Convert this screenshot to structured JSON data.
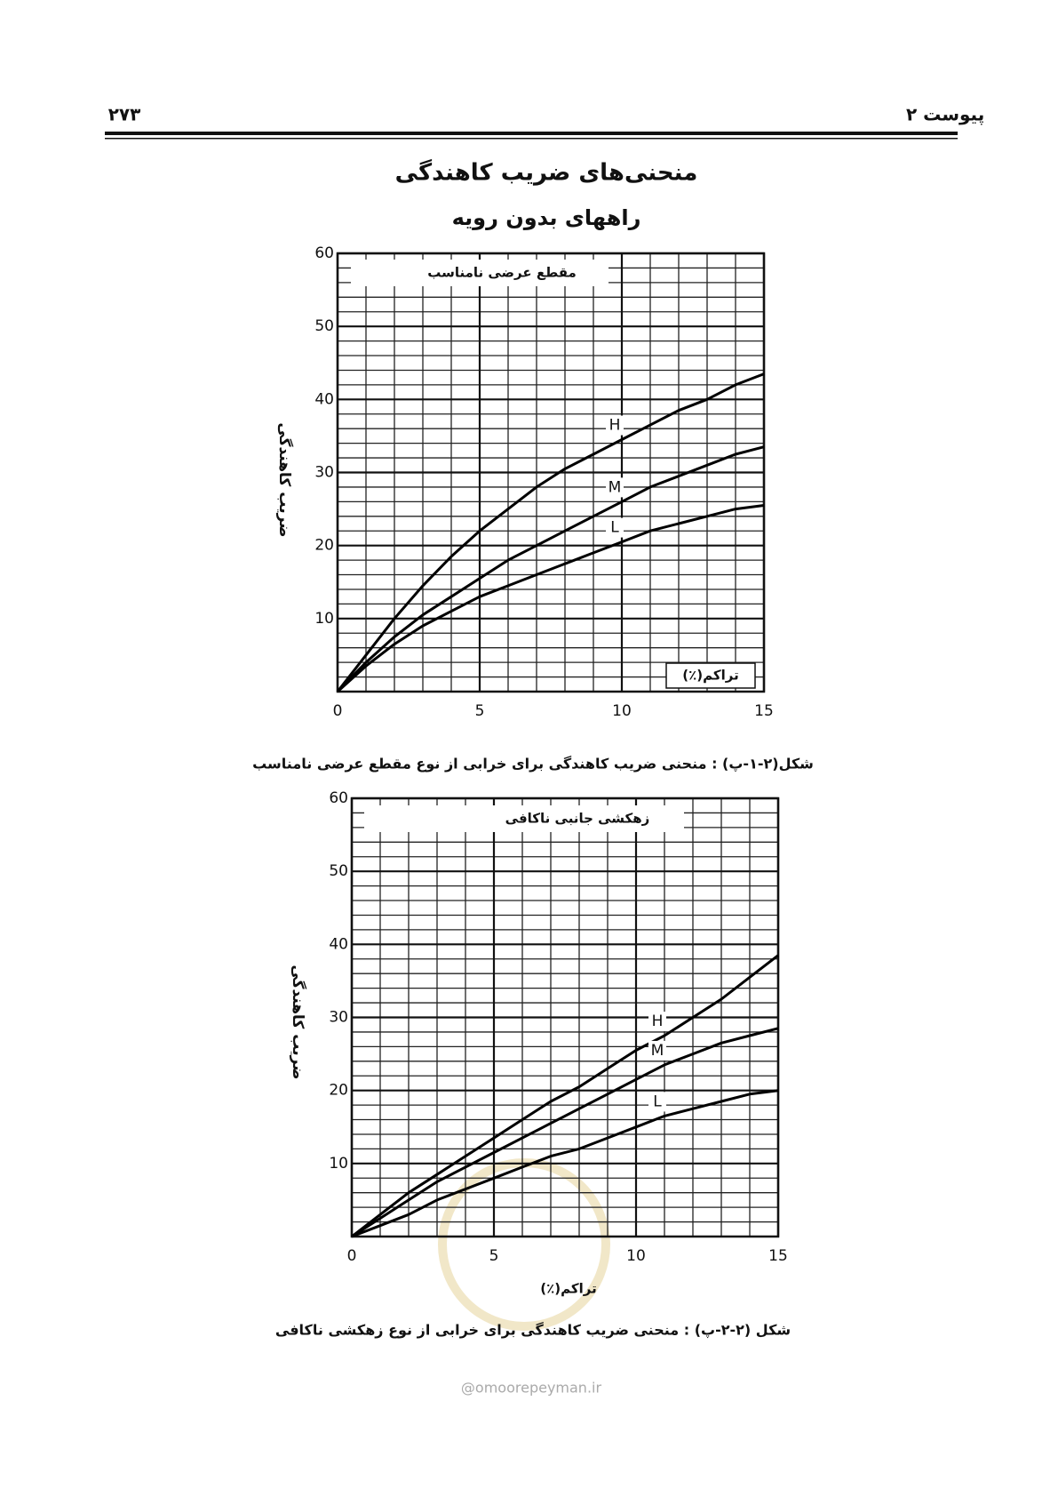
{
  "header": {
    "page_number": "۲۷۳",
    "section": "پیوست ۲"
  },
  "title": "منحنی‌های ضریب کاهندگی",
  "subtitle": "راههای بدون رویه",
  "chart_data": [
    {
      "type": "line",
      "title": "مقطع عرضی نامناسب",
      "x_label": "تراکم(٪)",
      "y_label": "ضریب کاهندگی",
      "x": [
        0,
        1,
        2,
        3,
        4,
        5,
        6,
        7,
        8,
        9,
        10,
        11,
        12,
        13,
        14,
        15
      ],
      "series": [
        {
          "name": "H",
          "color": "#000000",
          "values": [
            0,
            5,
            10,
            14.5,
            18.5,
            22,
            25,
            28,
            30.5,
            32.5,
            34.5,
            36.5,
            38.5,
            40,
            42,
            43.5
          ]
        },
        {
          "name": "M",
          "color": "#000000",
          "values": [
            0,
            4,
            7.5,
            10.5,
            13,
            15.5,
            18,
            20,
            22,
            24,
            26,
            28,
            29.5,
            31,
            32.5,
            33.5
          ]
        },
        {
          "name": "L",
          "color": "#000000",
          "values": [
            0,
            3.5,
            6.5,
            9,
            11,
            13,
            14.5,
            16,
            17.5,
            19,
            20.5,
            22,
            23,
            24,
            25,
            25.5
          ]
        }
      ],
      "xlim": [
        0,
        15
      ],
      "xticks": [
        0,
        5,
        10,
        15
      ],
      "ylim": [
        0,
        60
      ],
      "yticks": [
        10,
        20,
        30,
        40,
        50,
        60
      ],
      "grid": true,
      "caption": "شکل(۲-۱-پ) : منحنی ضریب کاهندگی برای خرابی از نوع مقطع عرضی نامناسب"
    },
    {
      "type": "line",
      "title": "زهکشی جانبی ناکافی",
      "x_label": "تراکم(٪)",
      "y_label": "ضریب کاهندگی",
      "x": [
        0,
        1,
        2,
        3,
        4,
        5,
        6,
        7,
        8,
        9,
        10,
        11,
        12,
        13,
        14,
        15
      ],
      "series": [
        {
          "name": "H",
          "color": "#000000",
          "values": [
            0,
            3,
            6,
            8.5,
            11,
            13.5,
            16,
            18.5,
            20.5,
            23,
            25.5,
            27.5,
            30,
            32.5,
            35.5,
            38.5
          ]
        },
        {
          "name": "M",
          "color": "#000000",
          "values": [
            0,
            2.5,
            5,
            7.5,
            9.5,
            11.5,
            13.5,
            15.5,
            17.5,
            19.5,
            21.5,
            23.5,
            25,
            26.5,
            27.5,
            28.5
          ]
        },
        {
          "name": "L",
          "color": "#000000",
          "values": [
            0,
            1.5,
            3,
            5,
            6.5,
            8,
            9.5,
            11,
            12,
            13.5,
            15,
            16.5,
            17.5,
            18.5,
            19.5,
            20
          ]
        }
      ],
      "xlim": [
        0,
        15
      ],
      "xticks": [
        0,
        5,
        10,
        15
      ],
      "ylim": [
        0,
        60
      ],
      "yticks": [
        10,
        20,
        30,
        40,
        50,
        60
      ],
      "grid": true,
      "caption": "شکل (۲-۲-پ) : منحنی ضریب کاهندگی برای خرابی از نوع زهکشی ناکافی"
    }
  ],
  "watermark": "@omoorepeyman.ir"
}
